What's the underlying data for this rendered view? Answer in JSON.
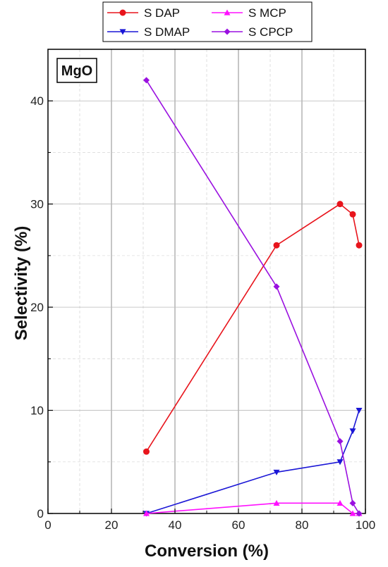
{
  "chart_data": {
    "type": "line",
    "annotation": "MgO",
    "xlabel": "Conversion (%)",
    "ylabel": "Selectivity (%)",
    "xlim": [
      0,
      100
    ],
    "ylim": [
      0,
      45
    ],
    "x_ticks": [
      0,
      20,
      40,
      60,
      80,
      100
    ],
    "y_ticks": [
      0,
      10,
      20,
      30,
      40
    ],
    "x_tick_labels": [
      "0",
      "20",
      "40",
      "60",
      "80",
      "100"
    ],
    "y_tick_labels": [
      "0",
      "10",
      "20",
      "30",
      "40"
    ],
    "grid": true,
    "legend_position": "top-center",
    "series": [
      {
        "name": "S DAP",
        "color": "#e8141c",
        "marker": "circle",
        "x": [
          31,
          72,
          92,
          96,
          98
        ],
        "y": [
          6,
          26,
          30,
          29,
          26
        ]
      },
      {
        "name": "S DMAP",
        "color": "#1a16d6",
        "marker": "triangle-down",
        "x": [
          31,
          72,
          92,
          96,
          98
        ],
        "y": [
          0,
          4,
          5,
          8,
          10
        ]
      },
      {
        "name": "S MCP",
        "color": "#ff10ff",
        "marker": "triangle-up",
        "x": [
          31,
          72,
          92,
          96,
          98
        ],
        "y": [
          0,
          1,
          1,
          0,
          0
        ]
      },
      {
        "name": "S CPCP",
        "color": "#9a10e0",
        "marker": "diamond",
        "x": [
          31,
          72,
          92,
          96,
          98
        ],
        "y": [
          42,
          22,
          7,
          1,
          0
        ]
      }
    ]
  }
}
